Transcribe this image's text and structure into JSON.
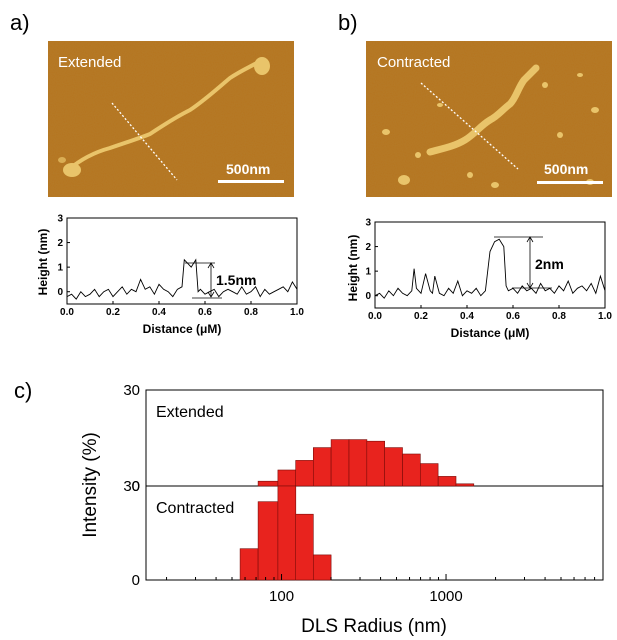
{
  "panels": {
    "a": "a)",
    "b": "b)",
    "c": "c)"
  },
  "afm": [
    {
      "label": "Extended",
      "scale_bar": "500nm"
    },
    {
      "label": "Contracted",
      "scale_bar": "500nm"
    }
  ],
  "colors": {
    "afm_background": "#b5741e",
    "afm_feature": "#e9c46a",
    "bar_fill": "#e8231e",
    "bar_edge": "#7a0b08"
  },
  "chart_data": [
    {
      "type": "line",
      "panel": "a",
      "xlabel": "Distance (μM)",
      "ylabel": "Height (nm)",
      "xlim": [
        0.0,
        1.0
      ],
      "ylim": [
        -0.5,
        3.0
      ],
      "xticks": [
        "0.0",
        "0.2",
        "0.4",
        "0.6",
        "0.8",
        "1.0"
      ],
      "yticks": [
        "0",
        "1",
        "2",
        "3"
      ],
      "annotation": "1.5nm",
      "x": [
        0.0,
        0.02,
        0.04,
        0.06,
        0.08,
        0.1,
        0.12,
        0.14,
        0.16,
        0.18,
        0.2,
        0.22,
        0.24,
        0.26,
        0.28,
        0.3,
        0.32,
        0.34,
        0.36,
        0.38,
        0.4,
        0.42,
        0.44,
        0.46,
        0.48,
        0.5,
        0.51,
        0.52,
        0.54,
        0.56,
        0.57,
        0.58,
        0.6,
        0.62,
        0.64,
        0.66,
        0.68,
        0.7,
        0.72,
        0.74,
        0.76,
        0.78,
        0.8,
        0.82,
        0.84,
        0.86,
        0.88,
        0.9,
        0.92,
        0.94,
        0.96,
        0.98,
        1.0
      ],
      "y": [
        -0.2,
        -0.1,
        -0.3,
        0.0,
        -0.2,
        -0.1,
        0.1,
        -0.2,
        0.0,
        0.1,
        -0.2,
        0.0,
        0.2,
        -0.1,
        0.1,
        0.0,
        0.5,
        0.1,
        0.2,
        -0.1,
        0.3,
        0.1,
        0.0,
        -0.2,
        0.1,
        0.2,
        1.3,
        1.2,
        1.0,
        1.3,
        0.0,
        0.1,
        -0.1,
        0.0,
        0.1,
        -0.2,
        0.0,
        0.1,
        0.0,
        -0.1,
        0.2,
        -0.1,
        0.0,
        0.2,
        -0.2,
        0.1,
        -0.1,
        0.0,
        0.1,
        0.2,
        0.0,
        0.4,
        0.1
      ]
    },
    {
      "type": "line",
      "panel": "b",
      "xlabel": "Distance (μM)",
      "ylabel": "Height (nm)",
      "xlim": [
        0.0,
        1.0
      ],
      "ylim": [
        -0.5,
        3.0
      ],
      "xticks": [
        "0.0",
        "0.2",
        "0.4",
        "0.6",
        "0.8",
        "1.0"
      ],
      "yticks": [
        "0",
        "1",
        "2",
        "3"
      ],
      "annotation": "2nm",
      "x": [
        0.0,
        0.02,
        0.04,
        0.06,
        0.08,
        0.1,
        0.12,
        0.14,
        0.16,
        0.17,
        0.18,
        0.2,
        0.22,
        0.24,
        0.25,
        0.26,
        0.28,
        0.3,
        0.32,
        0.34,
        0.36,
        0.38,
        0.4,
        0.42,
        0.44,
        0.46,
        0.48,
        0.5,
        0.52,
        0.54,
        0.56,
        0.57,
        0.58,
        0.6,
        0.62,
        0.64,
        0.66,
        0.68,
        0.7,
        0.72,
        0.74,
        0.76,
        0.78,
        0.8,
        0.82,
        0.84,
        0.86,
        0.88,
        0.9,
        0.92,
        0.94,
        0.96,
        0.98,
        1.0
      ],
      "y": [
        0.0,
        0.1,
        -0.1,
        0.2,
        0.0,
        0.3,
        0.1,
        0.0,
        0.2,
        1.1,
        0.3,
        0.1,
        0.9,
        0.2,
        0.1,
        0.8,
        0.1,
        0.0,
        0.3,
        0.1,
        0.6,
        0.0,
        0.2,
        0.1,
        0.3,
        0.0,
        0.2,
        1.8,
        2.2,
        2.3,
        2.0,
        0.4,
        0.2,
        0.3,
        0.1,
        0.4,
        0.2,
        0.3,
        0.1,
        0.5,
        0.2,
        0.3,
        0.1,
        0.4,
        0.2,
        0.6,
        0.1,
        0.3,
        0.4,
        0.2,
        0.5,
        0.1,
        0.8,
        0.2
      ]
    },
    {
      "type": "bar",
      "panel": "c",
      "xlabel": "DLS Radius (nm)",
      "ylabel": "Intensity (%)",
      "xscale": "log",
      "xlim": [
        15,
        9000
      ],
      "xticks": [
        100,
        1000
      ],
      "xtick_labels": [
        "100",
        "1000"
      ],
      "ylim": [
        0,
        30
      ],
      "yticks": [
        "0",
        "30"
      ],
      "series": [
        {
          "name": "Extended",
          "bins": [
            [
              72,
              95
            ],
            [
              95,
              122
            ],
            [
              122,
              156
            ],
            [
              156,
              200
            ],
            [
              200,
              257
            ],
            [
              257,
              330
            ],
            [
              330,
              424
            ],
            [
              424,
              544
            ],
            [
              544,
              698
            ],
            [
              698,
              896
            ],
            [
              896,
              1150
            ],
            [
              1150,
              1475
            ]
          ],
          "values": [
            1.5,
            5,
            8,
            12,
            14.5,
            14.5,
            14,
            12,
            10,
            7,
            3,
            0.7
          ]
        },
        {
          "name": "Contracted",
          "bins": [
            [
              56,
              72
            ],
            [
              72,
              95
            ],
            [
              95,
              122
            ],
            [
              122,
              156
            ],
            [
              156,
              200
            ]
          ],
          "values": [
            10,
            25,
            30,
            21,
            8
          ]
        }
      ]
    }
  ]
}
